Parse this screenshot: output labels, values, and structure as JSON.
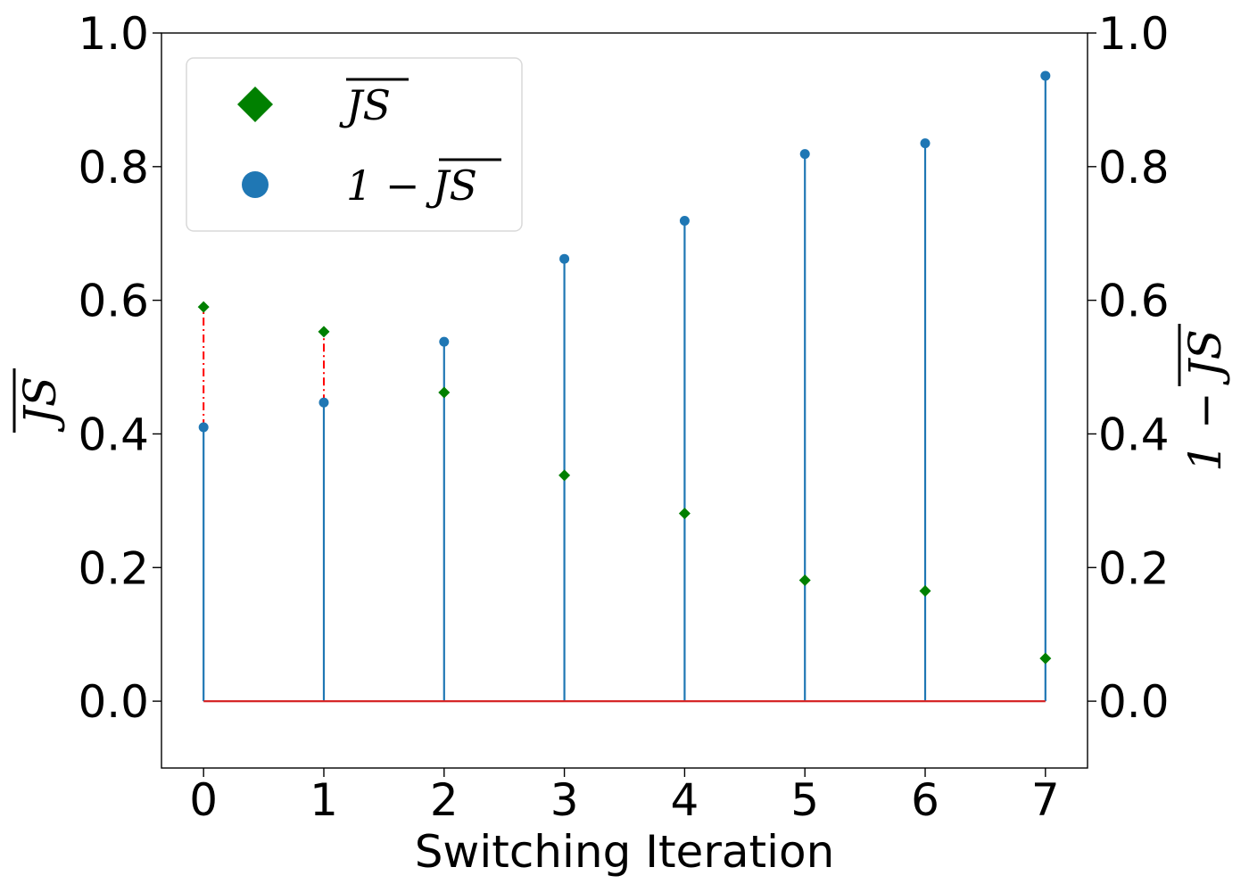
{
  "chart_data": {
    "type": "stem",
    "xlabel": "Switching Iteration",
    "ylabel_left": "JS",
    "ylabel_right": "1 − JS",
    "xlim": [
      -0.35,
      7.35
    ],
    "ylim": [
      -0.1,
      1.0
    ],
    "x_ticks": [
      0,
      1,
      2,
      3,
      4,
      5,
      6,
      7
    ],
    "y_ticks": [
      0.0,
      0.2,
      0.4,
      0.6,
      0.8,
      1.0
    ],
    "y_tick_labels": [
      "0.0",
      "0.2",
      "0.4",
      "0.6",
      "0.8",
      "1.0"
    ],
    "x": [
      0,
      1,
      2,
      3,
      4,
      5,
      6,
      7
    ],
    "series": [
      {
        "name": "JS",
        "marker": "diamond",
        "color": "#008000",
        "values": [
          0.59,
          0.553,
          0.462,
          0.338,
          0.281,
          0.181,
          0.165,
          0.064
        ]
      },
      {
        "name": "1 − JS",
        "marker": "circle",
        "color": "#1f77b4",
        "values": [
          0.41,
          0.447,
          0.538,
          0.662,
          0.719,
          0.819,
          0.835,
          0.936
        ]
      }
    ],
    "baseline": {
      "y": 0.0,
      "color": "#d62728"
    },
    "gap_line_color": "#ff0000",
    "legend": {
      "placement": "top-left",
      "entries": [
        "JS",
        "1 − JS"
      ]
    }
  }
}
